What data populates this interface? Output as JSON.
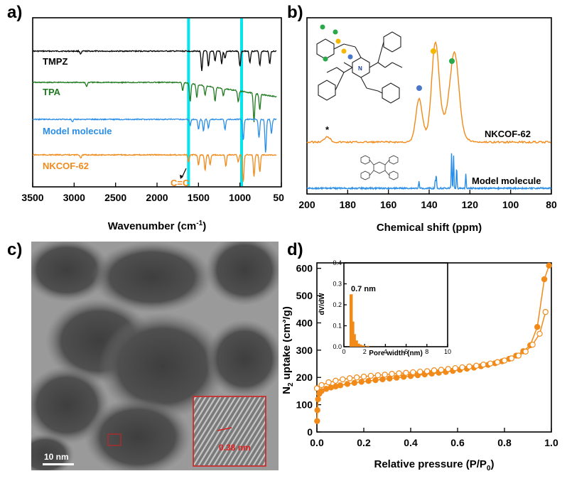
{
  "panel_letters": {
    "a": "a)",
    "b": "b)",
    "c": "c)",
    "d": "d)"
  },
  "chart_data": [
    {
      "panel": "a",
      "type": "line",
      "title": "",
      "xlabel": "Wavenumber (cm",
      "xlabel_sup": "-1",
      "xlabel_end": ")",
      "ylabel": "",
      "xlim": [
        3500,
        500
      ],
      "xticks": [
        3500,
        3000,
        2500,
        2000,
        1500,
        1000,
        500
      ],
      "highlight_lines": [
        1620,
        980
      ],
      "highlight_color": "#00e5ee",
      "annotation": "C=C",
      "series": [
        {
          "name": "TMPZ",
          "color": "#000000"
        },
        {
          "name": "TPA",
          "color": "#1f7a1f"
        },
        {
          "name": "Model molecule",
          "color": "#2a8ee8"
        },
        {
          "name": "NKCOF-62",
          "color": "#f28a1a"
        }
      ]
    },
    {
      "panel": "b",
      "type": "line",
      "title": "",
      "xlabel": "Chemical shift (ppm)",
      "ylabel": "",
      "xlim": [
        200,
        80
      ],
      "xticks": [
        200,
        180,
        160,
        140,
        120,
        100,
        80
      ],
      "annotation": "*",
      "marker_colors": [
        "#f5b800",
        "#2aa84a",
        "#4a78c8"
      ],
      "series": [
        {
          "name": "NKCOF-62",
          "color": "#f28a1a",
          "peaks": [
            145,
            137,
            127
          ]
        },
        {
          "name": "Model molecule",
          "color": "#2a8ee8",
          "peaks": [
            145,
            137,
            129,
            128,
            122
          ]
        }
      ]
    },
    {
      "panel": "d",
      "type": "scatter",
      "title": "",
      "xlabel": "Relative pressure (P/P",
      "xlabel_sub": "0",
      "xlabel_end": ")",
      "ylabel": "N",
      "ylabel_sub": "2",
      "ylabel_mid": " uptake (cm",
      "ylabel_sup": "3",
      "ylabel_end": "/g)",
      "xlim": [
        0,
        1
      ],
      "ylim": [
        0,
        620
      ],
      "xticks": [
        0.0,
        0.2,
        0.4,
        0.6,
        0.8,
        1.0
      ],
      "yticks": [
        0,
        100,
        200,
        300,
        400,
        500,
        600
      ],
      "series": [
        {
          "name": "adsorption",
          "filled": true,
          "color": "#f28a1a",
          "x": [
            0.001,
            0.002,
            0.005,
            0.01,
            0.02,
            0.04,
            0.06,
            0.08,
            0.1,
            0.13,
            0.16,
            0.19,
            0.22,
            0.25,
            0.28,
            0.31,
            0.34,
            0.37,
            0.4,
            0.43,
            0.46,
            0.49,
            0.52,
            0.55,
            0.58,
            0.61,
            0.64,
            0.67,
            0.7,
            0.73,
            0.76,
            0.79,
            0.82,
            0.85,
            0.88,
            0.91,
            0.94,
            0.97,
            0.99
          ],
          "y": [
            40,
            80,
            120,
            140,
            150,
            158,
            163,
            167,
            171,
            176,
            180,
            184,
            187,
            190,
            193,
            196,
            199,
            202,
            205,
            208,
            211,
            214,
            217,
            220,
            224,
            228,
            232,
            236,
            241,
            246,
            252,
            259,
            268,
            280,
            296,
            318,
            385,
            560,
            610
          ]
        },
        {
          "name": "desorption",
          "filled": false,
          "color": "#f28a1a",
          "x": [
            0.0,
            0.02,
            0.05,
            0.08,
            0.11,
            0.14,
            0.17,
            0.2,
            0.23,
            0.26,
            0.29,
            0.32,
            0.35,
            0.38,
            0.41,
            0.44,
            0.47,
            0.5,
            0.53,
            0.56,
            0.59,
            0.62,
            0.65,
            0.68,
            0.71,
            0.74,
            0.77,
            0.8,
            0.83,
            0.86,
            0.89,
            0.92,
            0.95,
            0.975
          ],
          "y": [
            160,
            172,
            182,
            188,
            193,
            197,
            200,
            203,
            206,
            208,
            210,
            213,
            215,
            217,
            219,
            221,
            223,
            226,
            228,
            231,
            234,
            237,
            240,
            243,
            247,
            251,
            256,
            262,
            270,
            280,
            295,
            320,
            360,
            440
          ]
        }
      ],
      "inset": {
        "type": "bar",
        "label": "0.7 nm",
        "xlabel": "Pore width (nm)",
        "ylabel": "dV/dW",
        "xlim": [
          0,
          10
        ],
        "ylim": [
          0,
          0.4
        ],
        "xticks": [
          0,
          2,
          4,
          6,
          8,
          10
        ],
        "yticks": [
          0.0,
          0.1,
          0.2,
          0.3,
          0.4
        ],
        "x": [
          0.7,
          0.85,
          1.0,
          1.2,
          1.4,
          1.6,
          1.9,
          2.3
        ],
        "values": [
          0.25,
          0.12,
          0.06,
          0.03,
          0.015,
          0.01,
          0.006,
          0.004
        ]
      }
    }
  ],
  "tem": {
    "scale_label": "10 nm",
    "inset_label": "0.38 nm"
  }
}
